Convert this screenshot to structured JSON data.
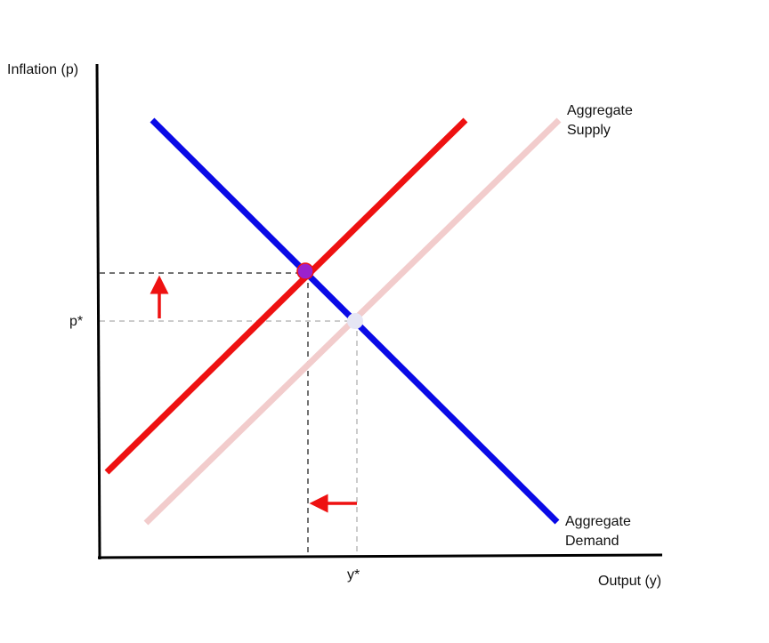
{
  "axes": {
    "y_title": "Inflation (p)",
    "x_title": "Output (y)"
  },
  "ticks": {
    "p_star": "p*",
    "y_star": "y*"
  },
  "curves": {
    "aggregate_supply": {
      "line1": "Aggregate",
      "line2": "Supply",
      "color": "#f2cccc"
    },
    "aggregate_supply_shifted": {
      "color": "#ee1111"
    },
    "aggregate_demand": {
      "line1": "Aggregate",
      "line2": "Demand",
      "color": "#0a0ae6"
    }
  },
  "points": {
    "original_equilibrium": {
      "color": "#e6e6f4"
    },
    "new_equilibrium": {
      "color": "#9b22cc"
    }
  },
  "arrows": {
    "inflation_up": {
      "color": "#ee1111"
    },
    "output_down": {
      "color": "#ee1111"
    }
  },
  "guides": {
    "original": {
      "color": "#bbbbbb"
    },
    "new": {
      "color": "#444444"
    }
  }
}
